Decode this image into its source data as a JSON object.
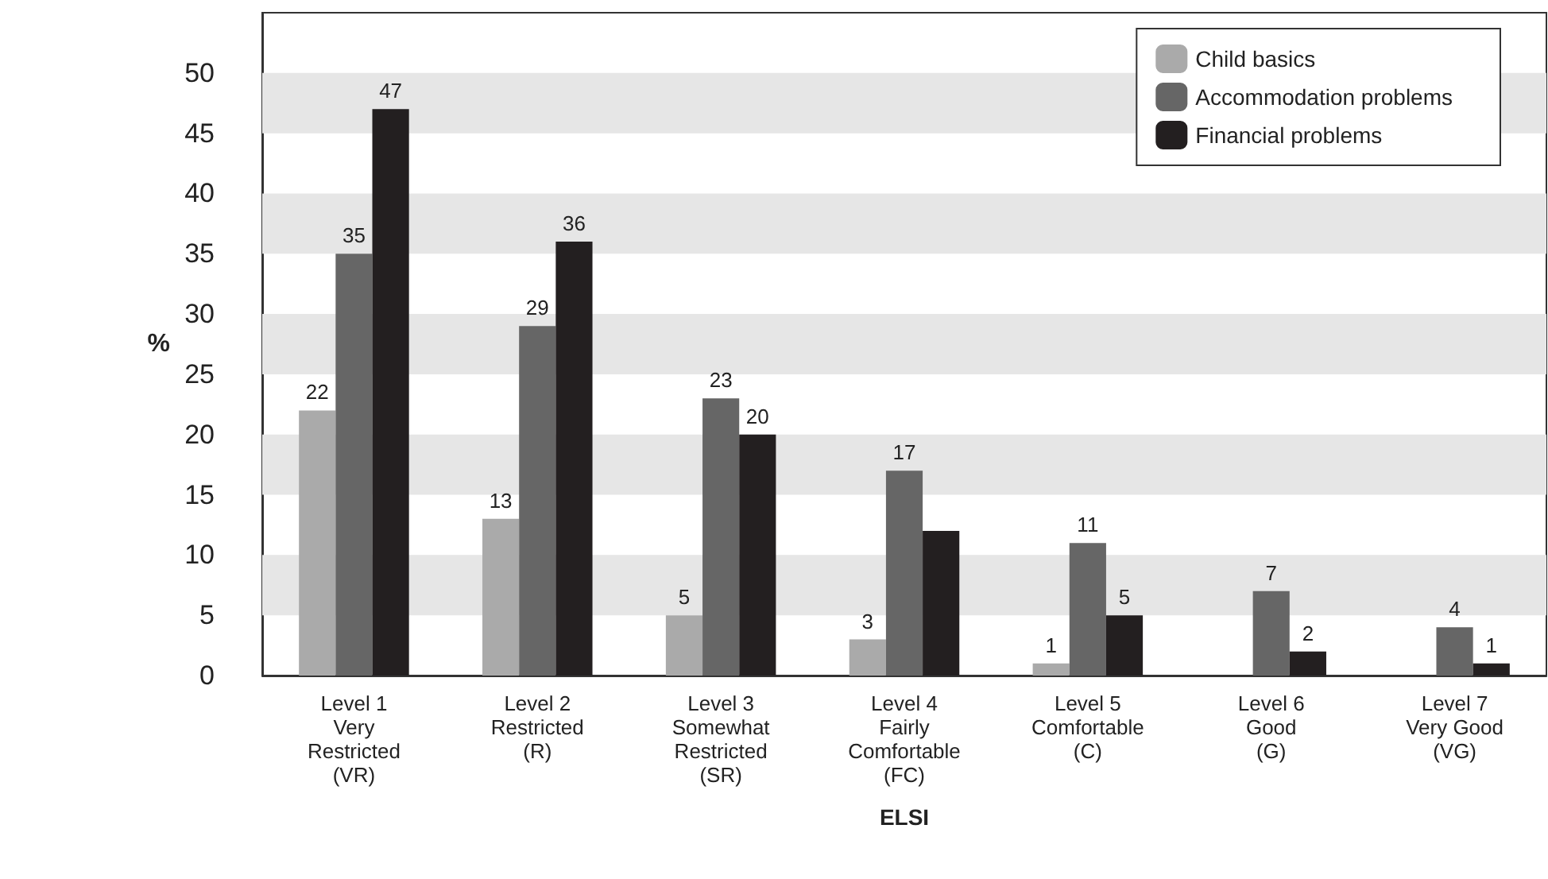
{
  "chart_data": {
    "type": "bar",
    "xlabel": "ELSI",
    "ylabel": "%",
    "categories": [
      "Level 1\nVery\nRestricted\n(VR)",
      "Level 2\nRestricted\n(R)",
      "Level 3\nSomewhat\nRestricted\n(SR)",
      "Level 4\nFairly\nComfortable\n(FC)",
      "Level 5\nComfortable\n(C)",
      "Level 6\nGood\n(G)",
      "Level 7\nVery Good\n(VG)"
    ],
    "series": [
      {
        "name": "Child basics",
        "color": "#aaaaaa",
        "values": [
          22,
          13,
          5,
          3,
          1,
          0,
          0
        ],
        "value_labels": [
          "22",
          "13",
          "5",
          "3",
          "1",
          null,
          null
        ]
      },
      {
        "name": "Accommodation problems",
        "color": "#666666",
        "values": [
          35,
          29,
          23,
          17,
          11,
          7,
          4
        ],
        "value_labels": [
          "35",
          "29",
          "23",
          "17",
          "11",
          "7",
          "4"
        ]
      },
      {
        "name": "Financial problems",
        "color": "#231f20",
        "values": [
          47,
          36,
          20,
          12,
          5,
          2,
          1
        ],
        "value_labels": [
          "47",
          "36",
          "20",
          null,
          "5",
          "2",
          "1"
        ]
      }
    ],
    "ylim": [
      0,
      55
    ],
    "yticks": [
      0,
      5,
      10,
      15,
      20,
      25,
      30,
      35,
      40,
      45,
      50
    ],
    "bands": [
      {
        "axis": "y",
        "from": 5,
        "to": 10,
        "color": "#e6e6e6"
      },
      {
        "axis": "y",
        "from": 15,
        "to": 20,
        "color": "#e6e6e6"
      },
      {
        "axis": "y",
        "from": 25,
        "to": 30,
        "color": "#e6e6e6"
      },
      {
        "axis": "y",
        "from": 35,
        "to": 40,
        "color": "#e6e6e6"
      },
      {
        "axis": "y",
        "from": 45,
        "to": 50,
        "color": "#e6e6e6"
      }
    ],
    "grid": false,
    "legend": "top right"
  }
}
